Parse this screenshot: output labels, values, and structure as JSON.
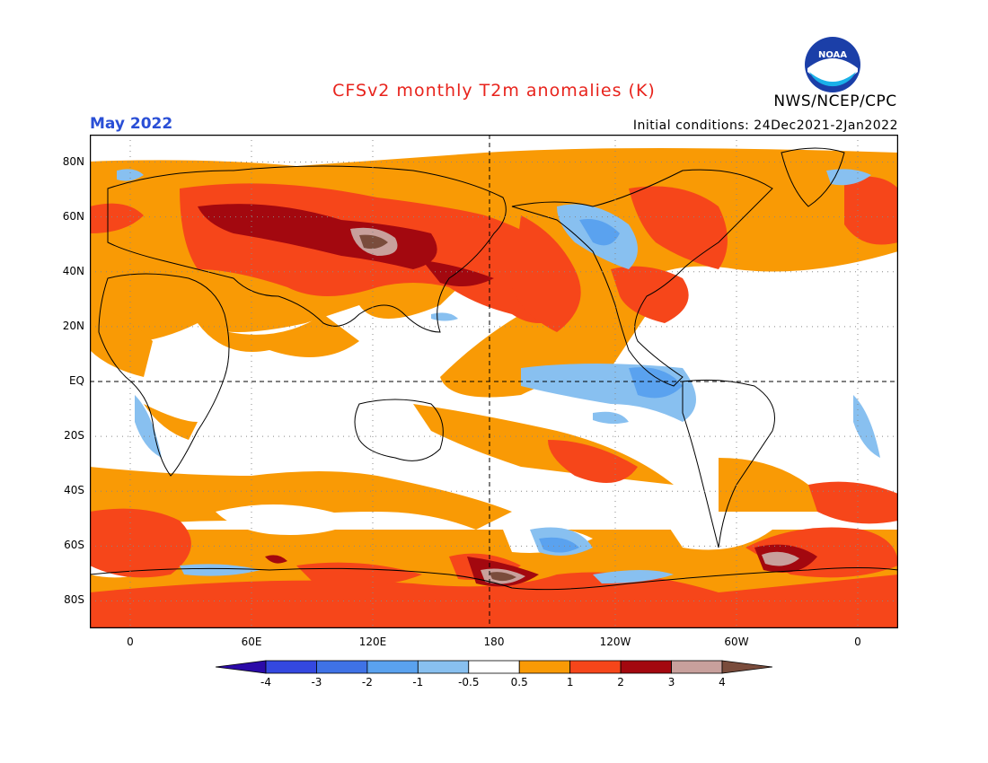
{
  "title": "CFSv2 monthly T2m anomalies (K)",
  "agency": "NWS/NCEP/CPC",
  "logo_text": "NOAA",
  "valid_month": "May 2022",
  "initial_conditions": "Initial conditions: 24Dec2021-2Jan2022",
  "colors": {
    "title": "#e8231c",
    "month": "#2a4fd6",
    "bins": [
      "#2b0aa8",
      "#3448e0",
      "#3f72e6",
      "#5aa2ef",
      "#88c0f0",
      "#ffffff",
      "#f99a05",
      "#f6461a",
      "#a3080f",
      "#c8a09c",
      "#7a4c3c"
    ]
  },
  "map": {
    "projection": "equirectangular",
    "lon_range": [
      -20,
      380
    ],
    "lat_range": [
      -90,
      90
    ],
    "lat_labels": [
      "80N",
      "60N",
      "40N",
      "20N",
      "EQ",
      "20S",
      "40S",
      "60S",
      "80S"
    ],
    "lat_values": [
      80,
      60,
      40,
      20,
      0,
      -20,
      -40,
      -60,
      -80
    ],
    "lon_labels": [
      "0",
      "60E",
      "120E",
      "180",
      "120W",
      "60W",
      "0"
    ],
    "lon_values": [
      0,
      60,
      120,
      180,
      240,
      300,
      360
    ]
  },
  "colorbar": {
    "tick_labels": [
      "-4",
      "-3",
      "-2",
      "-1",
      "-0.5",
      "0.5",
      "1",
      "2",
      "3",
      "4"
    ]
  }
}
